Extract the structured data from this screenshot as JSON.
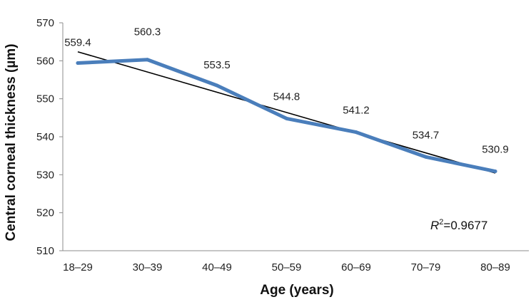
{
  "chart_data": {
    "type": "line",
    "title": "",
    "xlabel": "Age (years)",
    "ylabel": "Central corneal thickness (µm)",
    "categories": [
      "18–29",
      "30–39",
      "40–49",
      "50–59",
      "60–69",
      "70–79",
      "80–89"
    ],
    "series": [
      {
        "values": [
          559.4,
          560.3,
          553.5,
          544.8,
          541.2,
          534.7,
          530.9
        ],
        "data_labels": [
          "559.4",
          "560.3",
          "553.5",
          "544.8",
          "541.2",
          "534.7",
          "530.9"
        ],
        "color": "#4a7ebb"
      }
    ],
    "trendline": {
      "type": "linear",
      "color": "#000000",
      "r2_symbol": "R",
      "r2_superscript": "2",
      "r2_value": "=0.9677"
    },
    "ylim": [
      510,
      570
    ],
    "yticks": [
      510,
      520,
      530,
      540,
      550,
      560,
      570
    ],
    "ytick_labels": [
      "510",
      "520",
      "530",
      "540",
      "550",
      "560",
      "570"
    ],
    "grid": false,
    "legend": "none"
  }
}
